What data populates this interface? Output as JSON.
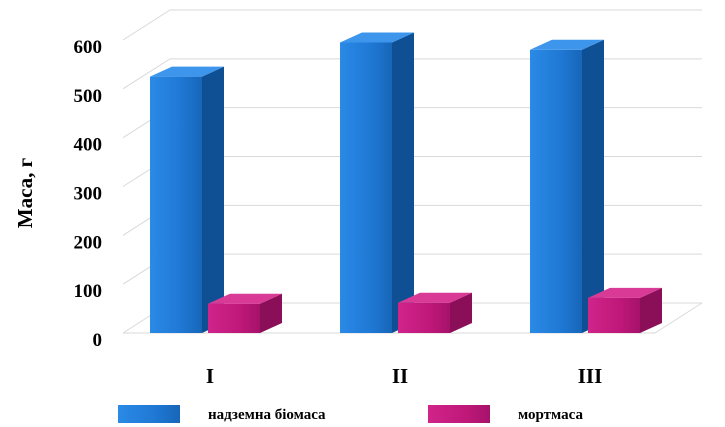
{
  "chart_data": {
    "type": "bar",
    "title": "",
    "xlabel": "",
    "ylabel": "Маса, г",
    "ylim": [
      0,
      600
    ],
    "yticks": [
      "0",
      "100",
      "200",
      "300",
      "400",
      "500",
      "600"
    ],
    "categories": [
      "I",
      "II",
      "III"
    ],
    "series": [
      {
        "name": "надземна біомаса",
        "values": [
          525,
          595,
          580
        ],
        "color": "#1f78d4"
      },
      {
        "name": "мортмаса",
        "values": [
          60,
          62,
          72
        ],
        "color": "#c0187a"
      }
    ],
    "grid": true,
    "legend_position": "bottom",
    "style": "3d-column"
  }
}
